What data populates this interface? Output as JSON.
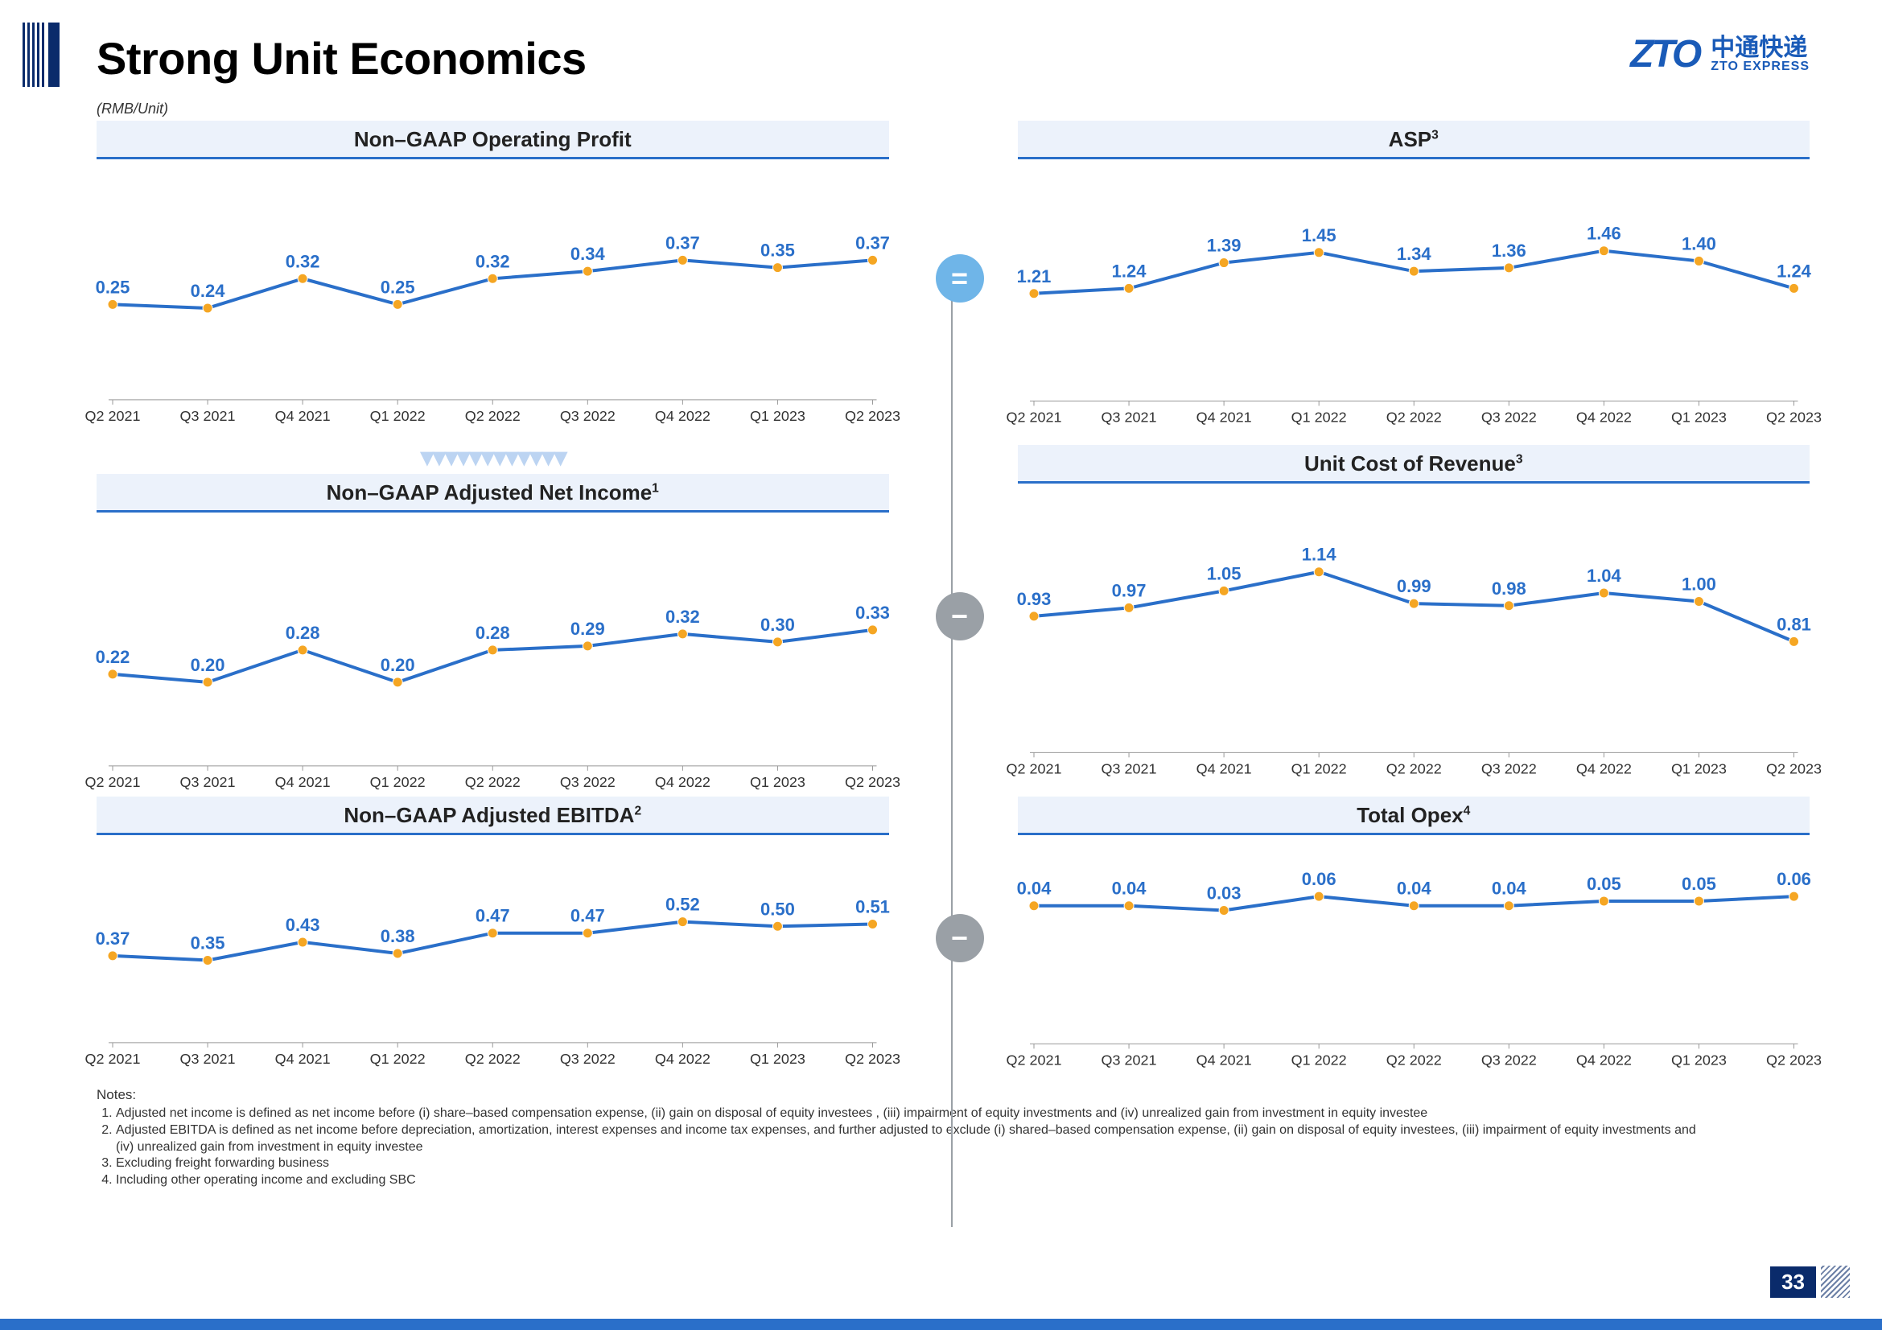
{
  "title": "Strong Unit Economics",
  "subtitle": "(RMB/Unit)",
  "logo": {
    "mark": "ZTO",
    "cn": "中通快递",
    "en": "ZTO EXPRESS"
  },
  "page_number": "33",
  "title_color": "#333333",
  "line_color": "#2a6fc9",
  "marker_color": "#f5a623",
  "label_color": "#2a6fc9",
  "axis_tick_color": "#999999",
  "panel_header_bg": "#ecf2fb",
  "panel_header_border": "#2a6fc9",
  "label_fontsize": 22,
  "tick_fontsize": 18,
  "line_width": 4,
  "marker_radius": 6,
  "categories": [
    "Q2 2021",
    "Q3 2021",
    "Q4 2021",
    "Q1 2022",
    "Q2 2022",
    "Q3 2022",
    "Q4 2022",
    "Q1 2023",
    "Q2 2023"
  ],
  "panels_left": [
    {
      "key": "op_profit",
      "title": "Non–GAAP Operating Profit",
      "sup": "",
      "values": [
        0.25,
        0.24,
        0.32,
        0.25,
        0.32,
        0.34,
        0.37,
        0.35,
        0.37
      ],
      "ymin": 0.0,
      "ymax": 0.55
    },
    {
      "key": "adj_ni",
      "title": "Non–GAAP Adjusted Net Income",
      "sup": "1",
      "values": [
        0.22,
        0.2,
        0.28,
        0.2,
        0.28,
        0.29,
        0.32,
        0.3,
        0.33
      ],
      "ymin": 0.0,
      "ymax": 0.5
    },
    {
      "key": "adj_ebitda",
      "title": "Non–GAAP Adjusted EBITDA",
      "sup": "2",
      "values": [
        0.37,
        0.35,
        0.43,
        0.38,
        0.47,
        0.47,
        0.52,
        0.5,
        0.51
      ],
      "ymin": 0.0,
      "ymax": 0.75
    }
  ],
  "panels_right": [
    {
      "key": "asp",
      "title": "ASP",
      "sup": "3",
      "values": [
        1.21,
        1.24,
        1.39,
        1.45,
        1.34,
        1.36,
        1.46,
        1.4,
        1.24
      ],
      "ymin": 0.6,
      "ymax": 1.8
    },
    {
      "key": "unit_cost",
      "title": "Unit Cost of Revenue",
      "sup": "3",
      "values": [
        0.93,
        0.97,
        1.05,
        1.14,
        0.99,
        0.98,
        1.04,
        1.0,
        0.81
      ],
      "ymin": 0.3,
      "ymax": 1.4
    },
    {
      "key": "opex",
      "title": "Total Opex",
      "sup": "4",
      "values": [
        0.04,
        0.04,
        0.03,
        0.06,
        0.04,
        0.04,
        0.05,
        0.05,
        0.06
      ],
      "ymin": -0.25,
      "ymax": 0.12
    }
  ],
  "operators": [
    {
      "symbol": "=",
      "bg": "#6fb5e8"
    },
    {
      "symbol": "−",
      "bg": "#9aa0a6"
    },
    {
      "symbol": "−",
      "bg": "#9aa0a6"
    }
  ],
  "notes_title": "Notes:",
  "notes": [
    "Adjusted net income is defined as net income before (i) share–based compensation expense, (ii) gain on disposal of equity investees , (iii) impairment of equity investments and (iv) unrealized gain from investment in equity investee",
    "Adjusted EBITDA is defined as net income before depreciation, amortization, interest expenses and income tax expenses, and further adjusted to exclude (i) shared–based compensation expense, (ii) gain on disposal of equity investees, (iii) impairment of equity investments and (iv) unrealized gain from investment in equity investee",
    "Excluding freight forwarding business",
    "Including other operating income and excluding SBC"
  ]
}
